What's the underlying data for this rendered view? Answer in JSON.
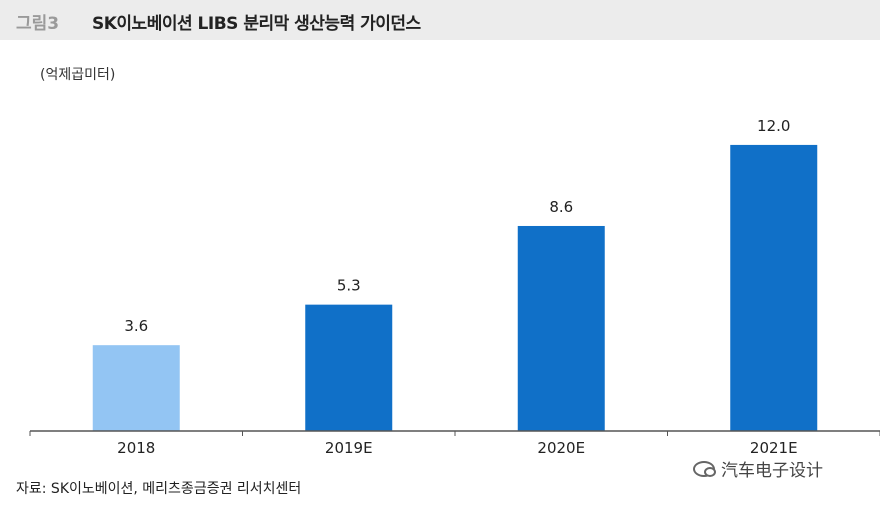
{
  "header": {
    "figure_label": "그림3",
    "title": "SK이노베이션 LIBS 분리막 생산능력 가이던스"
  },
  "unit_label": "(억제곱미터)",
  "source": "자료: SK이노베이션, 메리츠종금증권 리서치센터",
  "watermark": "汽车电子设计",
  "colors": {
    "actual": "#93c5f3",
    "estimate": "#1070c8",
    "axis": "#555555"
  },
  "chart_data": {
    "type": "bar",
    "categories": [
      "2018",
      "2019E",
      "2020E",
      "2021E"
    ],
    "values": [
      3.6,
      5.3,
      8.6,
      12.0
    ],
    "data_labels": [
      "3.6",
      "5.3",
      "8.6",
      "12.0"
    ],
    "bar_colors": [
      "#93c5f3",
      "#1070c8",
      "#1070c8",
      "#1070c8"
    ],
    "title": "",
    "xlabel": "",
    "ylabel": "(억제곱미터)",
    "ylim": [
      0,
      12.5
    ],
    "grid": false,
    "legend": "none"
  }
}
